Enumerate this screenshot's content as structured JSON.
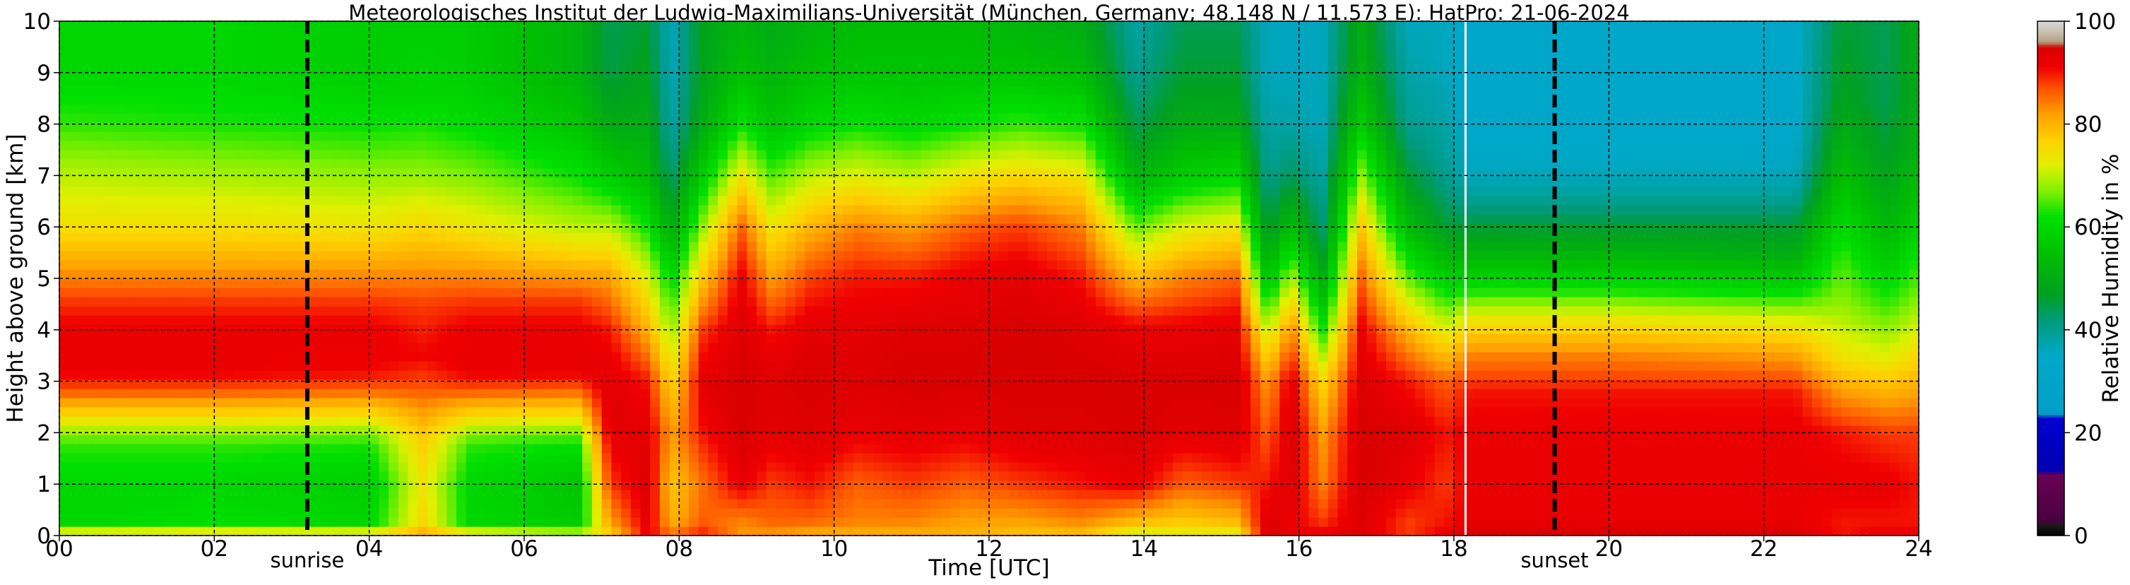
{
  "chart_data": {
    "type": "heatmap",
    "title": "Meteorologisches Institut der Ludwig-Maximilians-Universität (München, Germany; 48.148 N / 11.573 E):    HatPro: 21-06-2024",
    "xlabel": "Time [UTC]",
    "ylabel": "Height above ground [km]",
    "xlim": [
      0,
      24
    ],
    "ylim": [
      0,
      10
    ],
    "x_ticks": [
      "00",
      "02",
      "04",
      "06",
      "08",
      "10",
      "12",
      "14",
      "16",
      "18",
      "20",
      "22",
      "24"
    ],
    "y_ticks": [
      "0",
      "1",
      "2",
      "3",
      "4",
      "5",
      "6",
      "7",
      "8",
      "9",
      "10"
    ],
    "grid": true,
    "markers": [
      {
        "label": "sunrise",
        "time": 3.2
      },
      {
        "label": "sunset",
        "time": 19.3
      }
    ],
    "data_gap_time": 18.15,
    "colorbar": {
      "label": "Relative Humidity in %",
      "range": [
        0,
        100
      ],
      "ticks": [
        "0",
        "20",
        "40",
        "60",
        "80",
        "100"
      ],
      "stops": [
        {
          "value": 0,
          "color": "#000000"
        },
        {
          "value": 2,
          "color": "#1a1a1a"
        },
        {
          "value": 3,
          "color": "#4a0040"
        },
        {
          "value": 12,
          "color": "#6a0055"
        },
        {
          "value": 12.5,
          "color": "#0000b0"
        },
        {
          "value": 23,
          "color": "#0000d0"
        },
        {
          "value": 23.5,
          "color": "#009ec8"
        },
        {
          "value": 35,
          "color": "#00a8c8"
        },
        {
          "value": 42,
          "color": "#009a78"
        },
        {
          "value": 47,
          "color": "#00a020"
        },
        {
          "value": 55,
          "color": "#00c000"
        },
        {
          "value": 62,
          "color": "#00e000"
        },
        {
          "value": 67,
          "color": "#80f000"
        },
        {
          "value": 72,
          "color": "#e0f000"
        },
        {
          "value": 77,
          "color": "#ffd000"
        },
        {
          "value": 82,
          "color": "#ffa000"
        },
        {
          "value": 87,
          "color": "#ff5000"
        },
        {
          "value": 91,
          "color": "#f00000"
        },
        {
          "value": 95,
          "color": "#d80000"
        },
        {
          "value": 96,
          "color": "#b0a080"
        },
        {
          "value": 98,
          "color": "#c8c0b0"
        },
        {
          "value": 100,
          "color": "#d8d8d8"
        }
      ]
    },
    "profiles": [
      {
        "time": 0.0,
        "heights": [
          0,
          0.2,
          1.0,
          1.8,
          2.3,
          2.8,
          3.2,
          4.0,
          4.6,
          5.2,
          6.0,
          7.0,
          8.0,
          9.0,
          10
        ],
        "rh": [
          80,
          60,
          60,
          64,
          75,
          86,
          92,
          92,
          88,
          82,
          75,
          70,
          64,
          60,
          60
        ]
      },
      {
        "time": 2.0,
        "heights": [
          0,
          0.2,
          1.0,
          1.8,
          2.3,
          2.8,
          3.2,
          4.0,
          4.6,
          5.2,
          6.0,
          7.0,
          8.0,
          9.0,
          10
        ],
        "rh": [
          80,
          62,
          60,
          64,
          75,
          86,
          92,
          92,
          88,
          82,
          75,
          69,
          63,
          60,
          60
        ]
      },
      {
        "time": 4.0,
        "heights": [
          0,
          0.2,
          1.0,
          1.8,
          2.3,
          2.8,
          3.2,
          4.0,
          4.6,
          5.2,
          6.0,
          7.0,
          8.0,
          9.0,
          10
        ],
        "rh": [
          80,
          60,
          58,
          63,
          74,
          85,
          91,
          92,
          88,
          82,
          74,
          68,
          62,
          58,
          58
        ]
      },
      {
        "time": 4.7,
        "heights": [
          0,
          0.2,
          1.0,
          2.0,
          2.8,
          3.5,
          4.5,
          5.5,
          7.0,
          8.5,
          10
        ],
        "rh": [
          82,
          76,
          74,
          78,
          86,
          91,
          88,
          80,
          68,
          60,
          58
        ]
      },
      {
        "time": 5.3,
        "heights": [
          0,
          0.2,
          1.0,
          1.8,
          2.3,
          2.8,
          3.2,
          4.0,
          4.6,
          5.2,
          6.0,
          7.0,
          8.0,
          9.0,
          10
        ],
        "rh": [
          80,
          60,
          60,
          64,
          75,
          86,
          92,
          92,
          88,
          82,
          74,
          67,
          61,
          58,
          58
        ]
      },
      {
        "time": 6.7,
        "heights": [
          0,
          0.2,
          1.0,
          1.8,
          2.3,
          2.8,
          3.2,
          4.0,
          4.6,
          5.2,
          6.0,
          7.0,
          8.0,
          9.0,
          10
        ],
        "rh": [
          75,
          58,
          56,
          62,
          74,
          85,
          92,
          92,
          88,
          80,
          70,
          62,
          56,
          52,
          52
        ]
      },
      {
        "time": 7.1,
        "heights": [
          0,
          0.3,
          1.0,
          2.0,
          2.5,
          3.0,
          3.5,
          4.0,
          5.0,
          6.0,
          7.0,
          8.0,
          9.0,
          10
        ],
        "rh": [
          76,
          82,
          88,
          93,
          94,
          93,
          92,
          90,
          82,
          70,
          58,
          50,
          45,
          44
        ]
      },
      {
        "time": 7.6,
        "heights": [
          0,
          0.3,
          1.0,
          2.0,
          3.0,
          4.0,
          5.0,
          6.0,
          7.0,
          8.0,
          9.0,
          10
        ],
        "rh": [
          92,
          93,
          94,
          93,
          90,
          80,
          72,
          62,
          54,
          50,
          48,
          46
        ]
      },
      {
        "time": 7.9,
        "heights": [
          0,
          0.3,
          1.0,
          2.0,
          3.0,
          4.0,
          5.0,
          6.0,
          7.0,
          8.0,
          9.0,
          10
        ],
        "rh": [
          85,
          80,
          78,
          82,
          76,
          68,
          60,
          50,
          42,
          38,
          36,
          36
        ]
      },
      {
        "time": 8.3,
        "heights": [
          0,
          0.3,
          1.0,
          2.0,
          3.0,
          4.0,
          5.0,
          6.0,
          7.0,
          8.0,
          9.0,
          10
        ],
        "rh": [
          90,
          86,
          85,
          90,
          93,
          88,
          78,
          68,
          58,
          50,
          48,
          48
        ]
      },
      {
        "time": 8.8,
        "heights": [
          0,
          0.3,
          1.0,
          2.0,
          3.0,
          4.0,
          5.0,
          6.0,
          7.0,
          8.0,
          9.0,
          10
        ],
        "rh": [
          82,
          84,
          92,
          95,
          95,
          94,
          92,
          86,
          74,
          62,
          55,
          52
        ]
      },
      {
        "time": 9.2,
        "heights": [
          0,
          0.3,
          1.0,
          2.0,
          3.0,
          4.0,
          5.0,
          6.0,
          7.0,
          8.0,
          9.0,
          10
        ],
        "rh": [
          82,
          86,
          88,
          93,
          94,
          90,
          82,
          74,
          65,
          56,
          52,
          50
        ]
      },
      {
        "time": 9.7,
        "heights": [
          0,
          0.3,
          1.0,
          2.0,
          3.0,
          4.0,
          5.0,
          6.0,
          7.0,
          8.0,
          9.0,
          10
        ],
        "rh": [
          80,
          86,
          90,
          94,
          95,
          93,
          88,
          80,
          70,
          60,
          55,
          52
        ]
      },
      {
        "time": 10.3,
        "heights": [
          0,
          0.3,
          1.0,
          2.0,
          3.0,
          4.0,
          5.0,
          6.0,
          7.0,
          8.0,
          9.0,
          10
        ],
        "rh": [
          80,
          84,
          86,
          92,
          94,
          93,
          90,
          84,
          72,
          62,
          56,
          54
        ]
      },
      {
        "time": 11.0,
        "heights": [
          0,
          0.3,
          1.0,
          2.0,
          3.0,
          4.0,
          5.0,
          6.0,
          7.0,
          8.0,
          9.0,
          10
        ],
        "rh": [
          80,
          84,
          88,
          93,
          95,
          94,
          90,
          82,
          70,
          60,
          56,
          54
        ]
      },
      {
        "time": 11.7,
        "heights": [
          0,
          0.3,
          1.0,
          2.0,
          3.0,
          4.0,
          5.0,
          6.0,
          7.0,
          8.0,
          9.0,
          10
        ],
        "rh": [
          80,
          82,
          86,
          92,
          95,
          94,
          92,
          86,
          74,
          62,
          56,
          54
        ]
      },
      {
        "time": 12.4,
        "heights": [
          0,
          0.3,
          1.0,
          2.0,
          3.0,
          4.0,
          5.0,
          6.0,
          7.0,
          8.0,
          9.0,
          10
        ],
        "rh": [
          78,
          82,
          88,
          94,
          95,
          95,
          93,
          88,
          76,
          64,
          56,
          52
        ]
      },
      {
        "time": 13.2,
        "heights": [
          0,
          0.3,
          1.0,
          2.0,
          3.0,
          4.0,
          5.0,
          6.0,
          7.0,
          8.0,
          9.0,
          10
        ],
        "rh": [
          78,
          84,
          90,
          94,
          95,
          94,
          90,
          84,
          74,
          62,
          54,
          50
        ]
      },
      {
        "time": 13.9,
        "heights": [
          0,
          0.3,
          1.0,
          2.0,
          3.0,
          4.0,
          5.0,
          6.0,
          7.0,
          8.0,
          9.0,
          10
        ],
        "rh": [
          70,
          80,
          92,
          95,
          95,
          92,
          80,
          66,
          52,
          44,
          40,
          38
        ]
      },
      {
        "time": 14.5,
        "heights": [
          0,
          0.3,
          1.0,
          2.0,
          3.0,
          4.0,
          5.0,
          6.0,
          7.0,
          8.0,
          9.0,
          10
        ],
        "rh": [
          72,
          78,
          86,
          93,
          95,
          92,
          84,
          72,
          58,
          50,
          46,
          44
        ]
      },
      {
        "time": 15.2,
        "heights": [
          0,
          0.3,
          1.0,
          2.0,
          3.0,
          4.0,
          5.0,
          6.0,
          7.0,
          8.0,
          9.0,
          10
        ],
        "rh": [
          72,
          80,
          88,
          94,
          95,
          93,
          86,
          74,
          60,
          50,
          46,
          44
        ]
      },
      {
        "time": 15.6,
        "heights": [
          0,
          0.3,
          1.0,
          2.0,
          3.0,
          4.0,
          5.0,
          6.0,
          7.0,
          8.0,
          9.0,
          10
        ],
        "rh": [
          95,
          94,
          90,
          86,
          82,
          70,
          55,
          45,
          40,
          38,
          36,
          36
        ]
      },
      {
        "time": 15.9,
        "heights": [
          0,
          0.3,
          1.0,
          2.0,
          3.0,
          4.0,
          5.0,
          6.0,
          7.0,
          8.0,
          9.0,
          10
        ],
        "rh": [
          92,
          92,
          94,
          95,
          93,
          84,
          70,
          55,
          44,
          38,
          36,
          36
        ]
      },
      {
        "time": 16.3,
        "heights": [
          0,
          0.3,
          1.0,
          2.0,
          3.0,
          4.0,
          5.0,
          6.0,
          7.0,
          8.0,
          9.0,
          10
        ],
        "rh": [
          92,
          88,
          84,
          82,
          76,
          62,
          50,
          42,
          38,
          36,
          36,
          36
        ]
      },
      {
        "time": 16.8,
        "heights": [
          0,
          0.3,
          1.0,
          2.0,
          3.0,
          4.0,
          5.0,
          6.0,
          7.0,
          8.0,
          9.0,
          10
        ],
        "rh": [
          94,
          94,
          95,
          95,
          94,
          92,
          86,
          78,
          68,
          58,
          52,
          50
        ]
      },
      {
        "time": 17.4,
        "heights": [
          0,
          0.3,
          1.0,
          2.0,
          3.0,
          4.0,
          5.0,
          6.0,
          7.0,
          8.0,
          9.0,
          10
        ],
        "rh": [
          88,
          88,
          92,
          94,
          90,
          80,
          66,
          54,
          46,
          40,
          38,
          36
        ]
      },
      {
        "time": 17.9,
        "heights": [
          0,
          0.3,
          1.0,
          2.0,
          3.0,
          4.0,
          5.0,
          6.0,
          7.0,
          8.0,
          9.0,
          10
        ],
        "rh": [
          92,
          90,
          88,
          90,
          86,
          72,
          58,
          46,
          40,
          38,
          36,
          36
        ]
      },
      {
        "time": 18.2,
        "heights": [
          0,
          0.3,
          1.0,
          2.0,
          2.8,
          3.5,
          4.2,
          4.8,
          5.5,
          6.0,
          6.5,
          7.0,
          8.0,
          9.0,
          10
        ],
        "rh": [
          95,
          92,
          92,
          92,
          90,
          84,
          74,
          62,
          52,
          46,
          40,
          36,
          34,
          34,
          34
        ]
      },
      {
        "time": 20.0,
        "heights": [
          0,
          0.3,
          1.0,
          2.0,
          2.8,
          3.5,
          4.2,
          4.8,
          5.5,
          6.0,
          6.5,
          7.0,
          8.0,
          9.0,
          10
        ],
        "rh": [
          95,
          92,
          92,
          92,
          90,
          84,
          74,
          62,
          52,
          46,
          40,
          36,
          34,
          34,
          34
        ]
      },
      {
        "time": 22.4,
        "heights": [
          0,
          0.3,
          1.0,
          2.0,
          2.8,
          3.5,
          4.2,
          4.8,
          5.5,
          6.0,
          6.5,
          7.0,
          8.0,
          9.0,
          10
        ],
        "rh": [
          95,
          92,
          92,
          92,
          90,
          82,
          72,
          60,
          50,
          46,
          40,
          36,
          34,
          34,
          34
        ]
      },
      {
        "time": 23.0,
        "heights": [
          0,
          0.3,
          1.0,
          2.0,
          3.0,
          3.5,
          4.5,
          5.5,
          6.5,
          7.5,
          8.5,
          10
        ],
        "rh": [
          90,
          90,
          92,
          90,
          80,
          74,
          68,
          64,
          58,
          52,
          48,
          46
        ]
      },
      {
        "time": 23.6,
        "heights": [
          0,
          0.3,
          1.0,
          2.0,
          3.0,
          3.5,
          4.5,
          5.5,
          6.5,
          7.5,
          8.5,
          10
        ],
        "rh": [
          92,
          90,
          92,
          88,
          78,
          72,
          64,
          56,
          50,
          46,
          44,
          44
        ]
      },
      {
        "time": 24.0,
        "heights": [
          0,
          0.3,
          1.0,
          2.0,
          3.0,
          3.5,
          4.5,
          5.5,
          6.5,
          7.5,
          8.5,
          10
        ],
        "rh": [
          92,
          90,
          90,
          88,
          80,
          76,
          68,
          62,
          56,
          52,
          50,
          50
        ]
      }
    ]
  }
}
